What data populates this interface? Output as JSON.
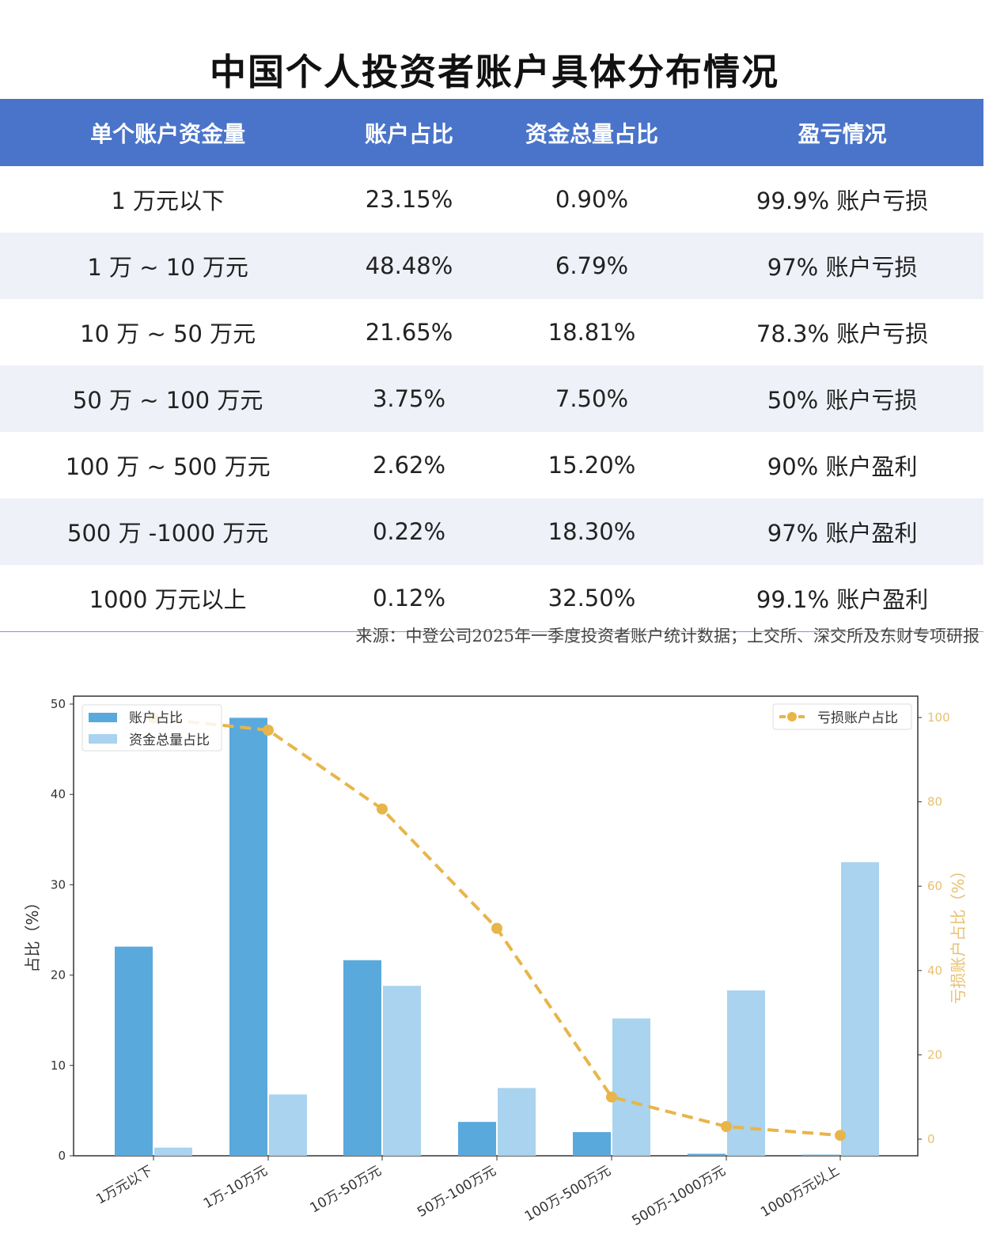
{
  "title": "中国个人投资者账户具体分布情况",
  "table": {
    "headers": [
      "单个账户资金量",
      "账户占比",
      "资金总量占比",
      "盈亏情况"
    ],
    "rows": [
      [
        "1 万元以下",
        "23.15%",
        "0.90%",
        "99.9% 账户亏损"
      ],
      [
        "1 万 ~ 10 万元",
        "48.48%",
        "6.79%",
        "97% 账户亏损"
      ],
      [
        "10 万 ~ 50 万元",
        "21.65%",
        "18.81%",
        "78.3% 账户亏损"
      ],
      [
        "50 万 ~ 100 万元",
        "3.75%",
        "7.50%",
        "50% 账户亏损"
      ],
      [
        "100 万 ~ 500 万元",
        "2.62%",
        "15.20%",
        "90% 账户盈利"
      ],
      [
        "500 万 -1000 万元",
        "0.22%",
        "18.30%",
        "97% 账户盈利"
      ],
      [
        "1000 万元以上",
        "0.12%",
        "32.50%",
        "99.1% 账户盈利"
      ]
    ]
  },
  "source": "来源：中登公司2025年一季度投资者账户统计数据；上交所、深交所及东财专项研报",
  "chart_data": {
    "type": "bar+line",
    "categories": [
      "1万元以下",
      "1万-10万元",
      "10万-50万元",
      "50万-100万元",
      "100万-500万元",
      "500万-1000万元",
      "1000万元以上"
    ],
    "series": [
      {
        "name": "账户占比",
        "type": "bar",
        "axis": "left",
        "color": "#5aa9dc",
        "values": [
          23.15,
          48.48,
          21.65,
          3.75,
          2.62,
          0.22,
          0.12
        ]
      },
      {
        "name": "资金总量占比",
        "type": "bar",
        "axis": "left",
        "color": "#a9d3ee",
        "values": [
          0.9,
          6.79,
          18.81,
          7.5,
          15.2,
          18.3,
          32.5
        ]
      },
      {
        "name": "亏损账户占比",
        "type": "line",
        "axis": "right",
        "color": "#e8b54a",
        "values": [
          99.9,
          97,
          78.3,
          50,
          10,
          3,
          0.9
        ]
      }
    ],
    "ylabel": "占比（%）",
    "y2label": "亏损账户占比（%）",
    "ylim": [
      0,
      50
    ],
    "yticks": [
      0,
      10,
      20,
      30,
      40,
      50
    ],
    "y2lim": [
      0,
      100
    ],
    "y2ticks": [
      0,
      20,
      40,
      60,
      80,
      100
    ],
    "legend": [
      "top-left",
      "top-right"
    ],
    "grid": false
  }
}
